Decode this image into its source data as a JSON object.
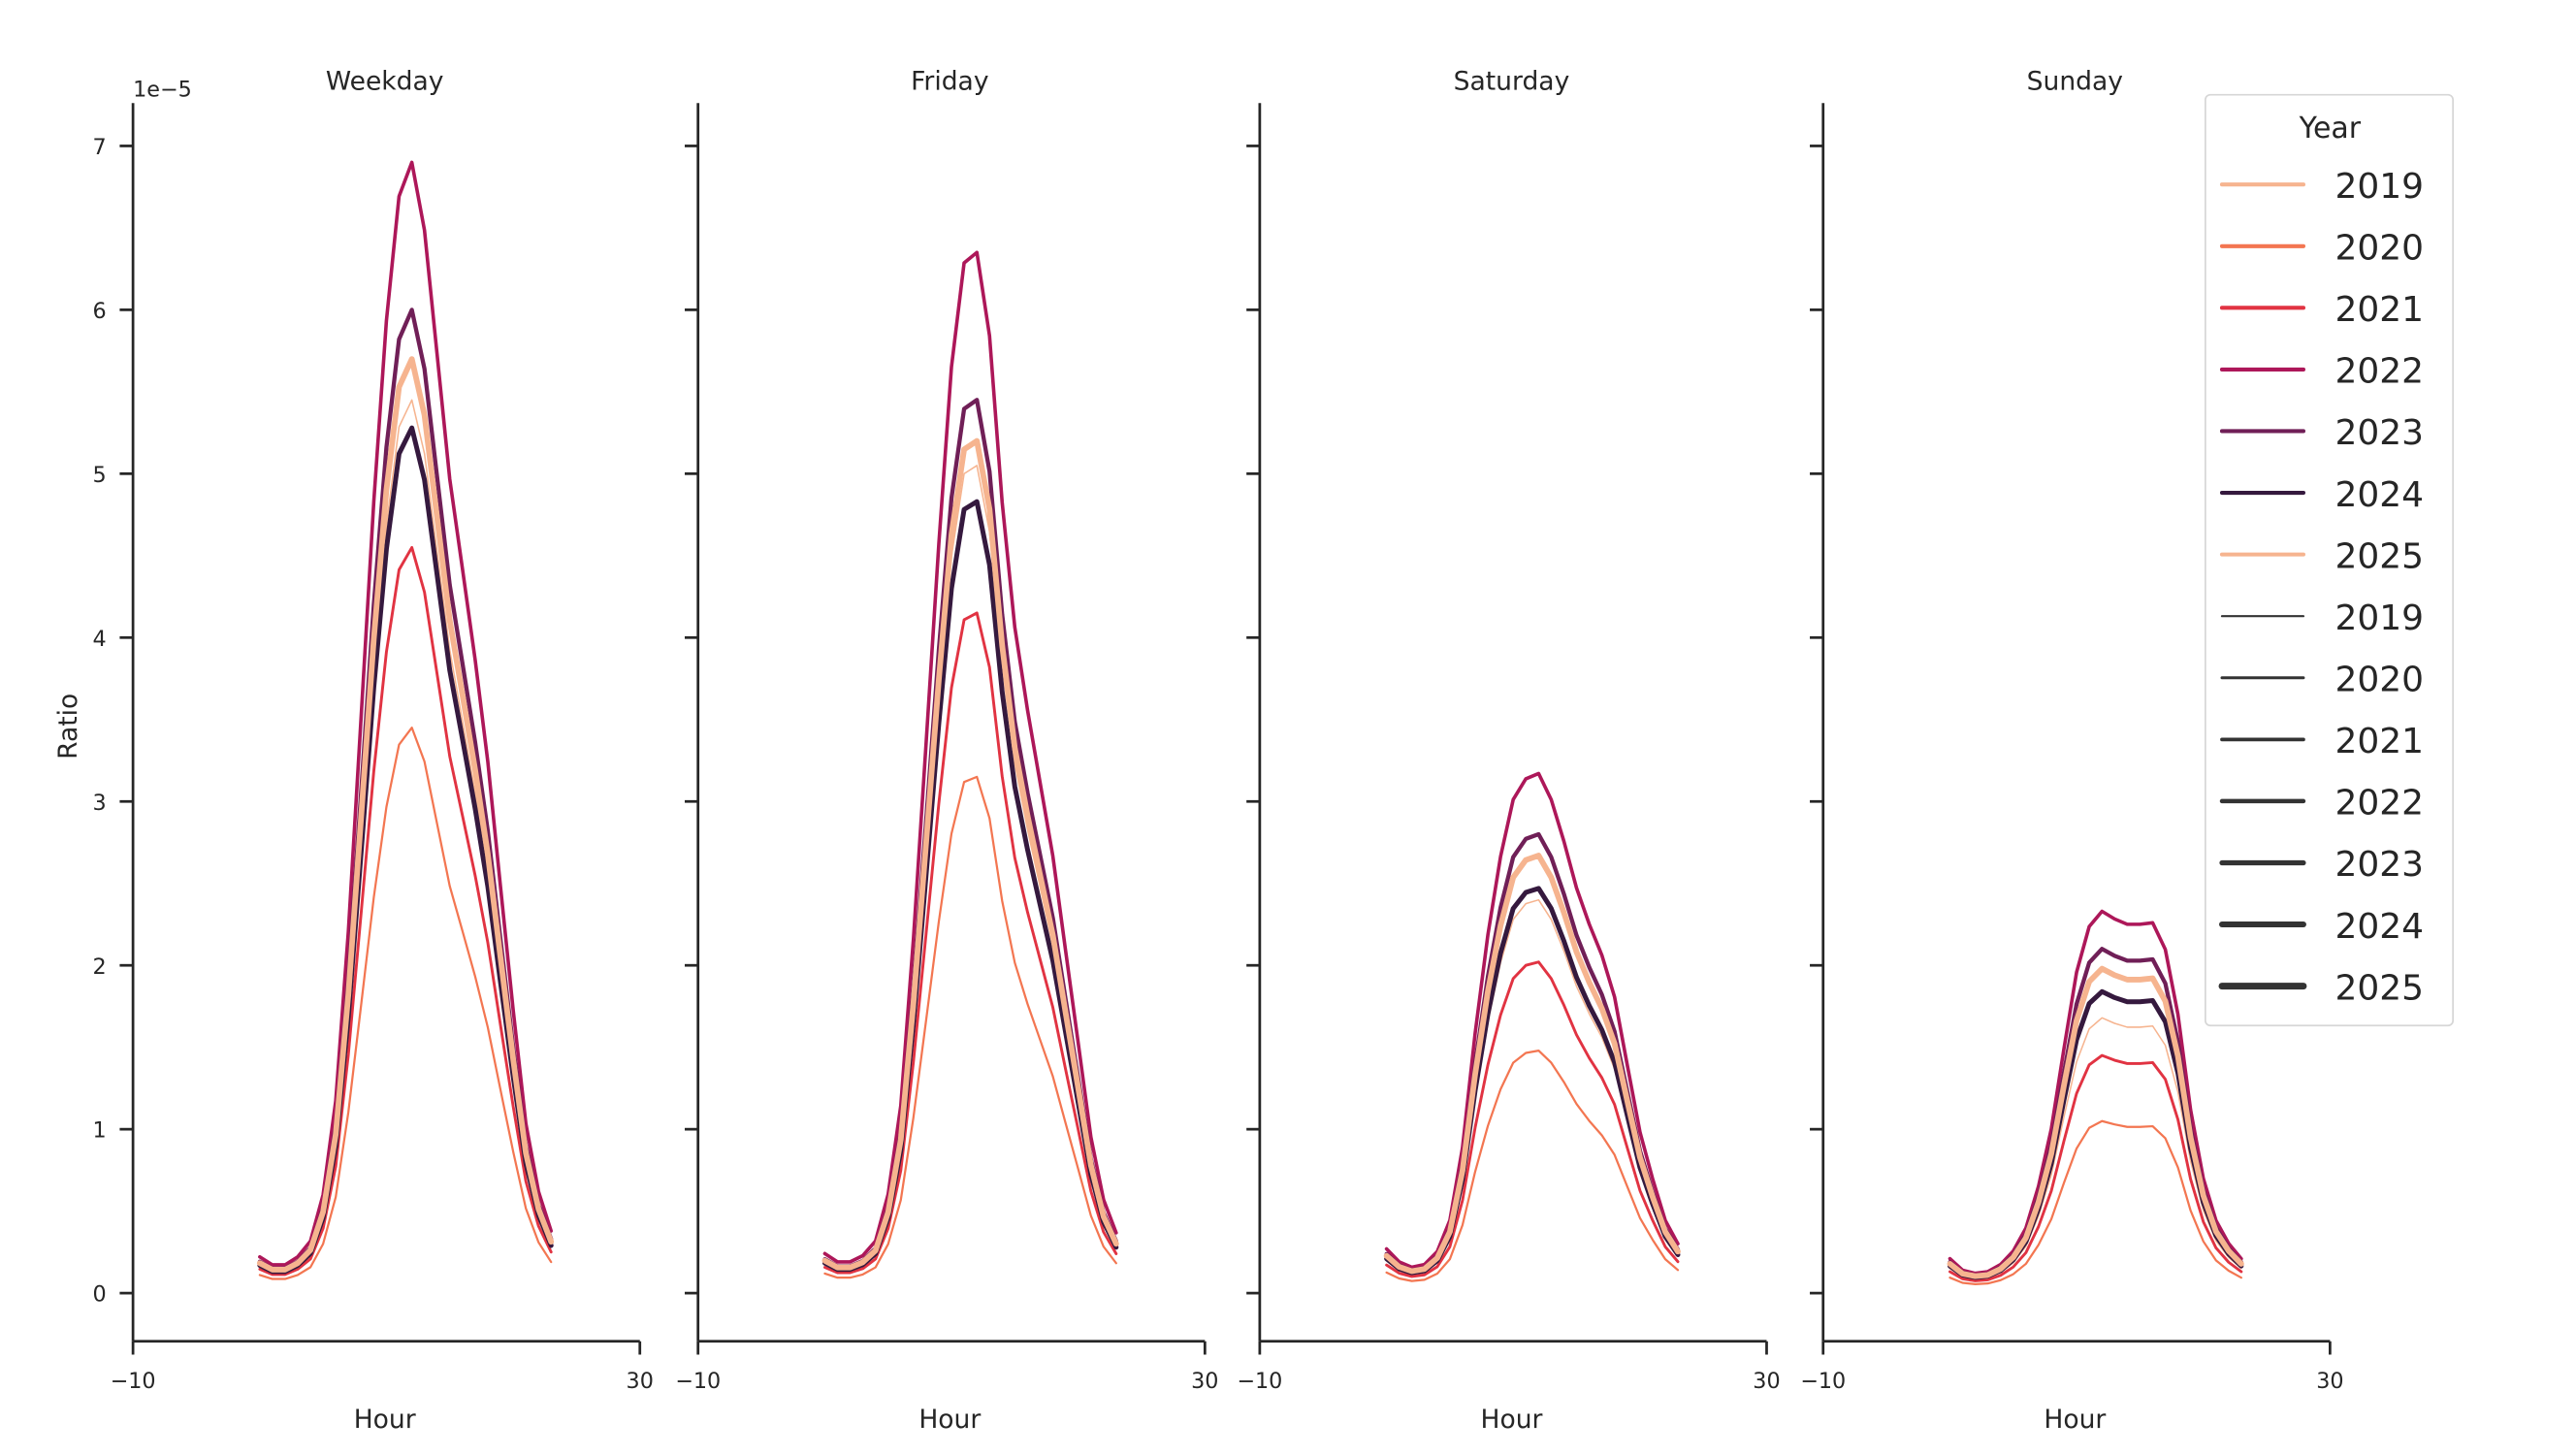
{
  "chart_data": {
    "type": "line",
    "note": "values[h] = profile[h] * peak for each series",
    "xlabel": "Hour",
    "ylabel": "Ratio",
    "y_offset_label": "1e−5",
    "xlim": [
      -10,
      30
    ],
    "ylim": [
      -0.3,
      7.25
    ],
    "xticks": [
      "−10",
      "30"
    ],
    "xtick_values": [
      -10,
      30
    ],
    "yticks": [
      "0",
      "1",
      "2",
      "3",
      "4",
      "5",
      "6",
      "7"
    ],
    "ytick_values": [
      0,
      1,
      2,
      3,
      4,
      5,
      6,
      7
    ],
    "grid": false,
    "hours": [
      0,
      1,
      2,
      3,
      4,
      5,
      6,
      7,
      8,
      9,
      10,
      11,
      12,
      13,
      14,
      15,
      16,
      17,
      18,
      19,
      20,
      21,
      22,
      23
    ],
    "legend": {
      "title": "Year",
      "placement": "top-right",
      "hue_entries": [
        {
          "label": "2019",
          "color": "#f6b48f"
        },
        {
          "label": "2020",
          "color": "#f37651"
        },
        {
          "label": "2021",
          "color": "#e13342"
        },
        {
          "label": "2022",
          "color": "#ad1759"
        },
        {
          "label": "2023",
          "color": "#701f57"
        },
        {
          "label": "2024",
          "color": "#35193e"
        },
        {
          "label": "2025",
          "color": "#f6b48f"
        }
      ],
      "size_entries": [
        {
          "label": "2019",
          "color": "#333333"
        },
        {
          "label": "2020",
          "color": "#333333"
        },
        {
          "label": "2021",
          "color": "#333333"
        },
        {
          "label": "2022",
          "color": "#333333"
        },
        {
          "label": "2023",
          "color": "#333333"
        },
        {
          "label": "2024",
          "color": "#333333"
        },
        {
          "label": "2025",
          "color": "#333333"
        }
      ]
    },
    "years": [
      "2019",
      "2020",
      "2021",
      "2022",
      "2023",
      "2024",
      "2025"
    ],
    "panels": [
      {
        "title": "Weekday",
        "profile": [
          0.032,
          0.025,
          0.025,
          0.032,
          0.046,
          0.087,
          0.17,
          0.32,
          0.51,
          0.7,
          0.86,
          0.97,
          1.0,
          0.94,
          0.83,
          0.72,
          0.64,
          0.56,
          0.47,
          0.36,
          0.25,
          0.15,
          0.09,
          0.055
        ],
        "peaks": {
          "2019": 5.45,
          "2020": 3.45,
          "2021": 4.55,
          "2022": 6.9,
          "2023": 6.0,
          "2024": 5.28,
          "2025": 5.7
        }
      },
      {
        "title": "Friday",
        "profile": [
          0.038,
          0.03,
          0.03,
          0.036,
          0.05,
          0.095,
          0.18,
          0.34,
          0.53,
          0.72,
          0.89,
          0.99,
          1.0,
          0.92,
          0.76,
          0.64,
          0.56,
          0.49,
          0.42,
          0.33,
          0.24,
          0.15,
          0.09,
          0.058
        ],
        "peaks": {
          "2019": 5.05,
          "2020": 3.15,
          "2021": 4.15,
          "2022": 6.35,
          "2023": 5.45,
          "2024": 4.83,
          "2025": 5.2
        }
      },
      {
        "title": "Saturday",
        "profile": [
          0.085,
          0.06,
          0.05,
          0.055,
          0.08,
          0.14,
          0.28,
          0.5,
          0.69,
          0.84,
          0.95,
          0.99,
          1.0,
          0.95,
          0.87,
          0.78,
          0.71,
          0.65,
          0.57,
          0.44,
          0.31,
          0.22,
          0.14,
          0.095
        ],
        "peaks": {
          "2019": 2.4,
          "2020": 1.48,
          "2021": 2.02,
          "2022": 3.17,
          "2023": 2.8,
          "2024": 2.47,
          "2025": 2.67
        }
      },
      {
        "title": "Sunday",
        "profile": [
          0.09,
          0.06,
          0.052,
          0.056,
          0.075,
          0.11,
          0.17,
          0.28,
          0.43,
          0.64,
          0.84,
          0.96,
          1.0,
          0.98,
          0.966,
          0.966,
          0.97,
          0.9,
          0.73,
          0.48,
          0.3,
          0.19,
          0.13,
          0.09
        ],
        "peaks": {
          "2019": 1.68,
          "2020": 1.05,
          "2021": 1.45,
          "2022": 2.33,
          "2023": 2.1,
          "2024": 1.84,
          "2025": 1.98
        }
      }
    ]
  }
}
